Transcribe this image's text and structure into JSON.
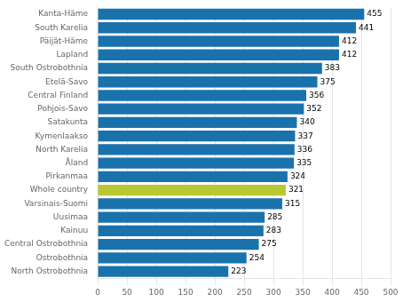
{
  "chart_data": {
    "type": "bar",
    "orientation": "horizontal",
    "categories": [
      "North Ostrobothnia",
      "Ostrobothnia",
      "Central Ostrobothnia",
      "Kainuu",
      "Uusimaa",
      "Varsinais-Suomi",
      "Whole country",
      "Pirkanmaa",
      "Åland",
      "North Karelia",
      "Kymenlaakso",
      "Satakunta",
      "Pohjois-Savo",
      "Central Finland",
      "Etelä-Savo",
      "South Ostrobothnia",
      "Lapland",
      "Päijät-Häme",
      "South Karelia",
      "Kanta-Häme"
    ],
    "values": [
      223,
      254,
      275,
      283,
      285,
      315,
      321,
      324,
      335,
      336,
      337,
      340,
      352,
      356,
      375,
      383,
      412,
      412,
      441,
      455
    ],
    "colors": [
      "#1a72ad",
      "#1a72ad",
      "#1a72ad",
      "#1a72ad",
      "#1a72ad",
      "#1a72ad",
      "#b8c832",
      "#1a72ad",
      "#1a72ad",
      "#1a72ad",
      "#1a72ad",
      "#1a72ad",
      "#1a72ad",
      "#1a72ad",
      "#1a72ad",
      "#1a72ad",
      "#1a72ad",
      "#1a72ad",
      "#1a72ad",
      "#1a72ad"
    ],
    "xlim": [
      0,
      500
    ],
    "xticks": [
      0,
      50,
      100,
      150,
      200,
      250,
      300,
      350,
      400,
      450,
      500
    ],
    "grid": true,
    "data_labels": true
  }
}
